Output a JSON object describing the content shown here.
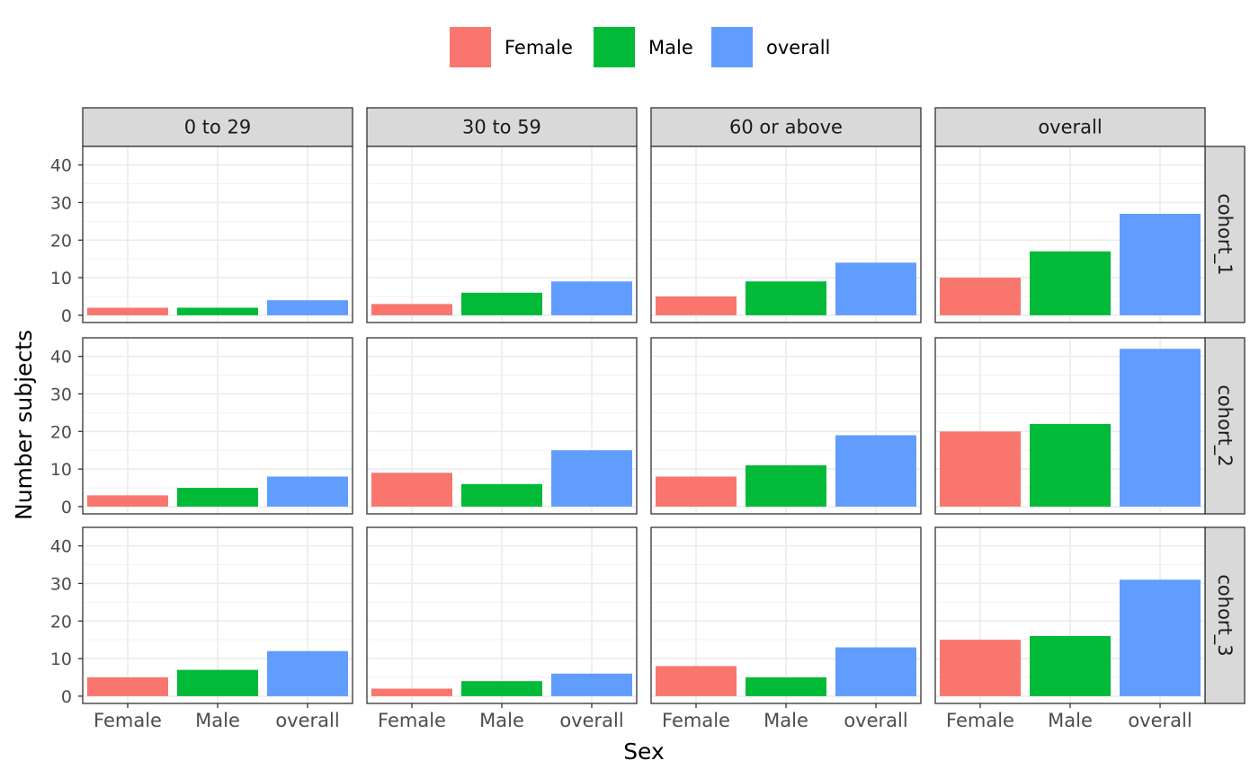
{
  "chart_data": {
    "type": "bar",
    "xlabel": "Sex",
    "ylabel": "Number subjects",
    "ylim": [
      0,
      43
    ],
    "yticks": [
      0,
      10,
      20,
      30,
      40
    ],
    "grid": true,
    "legend_placement": "top",
    "categories": [
      "Female",
      "Male",
      "overall"
    ],
    "colors": {
      "Female": "#F8766D",
      "Male": "#00BA38",
      "overall": "#619CFF"
    },
    "legend": [
      {
        "label": "Female",
        "color": "#F8766D"
      },
      {
        "label": "Male",
        "color": "#00BA38"
      },
      {
        "label": "overall",
        "color": "#619CFF"
      }
    ],
    "facet_columns": [
      "0 to 29",
      "30 to 59",
      "60 or above",
      "overall"
    ],
    "facet_rows": [
      "cohort_1",
      "cohort_2",
      "cohort_3"
    ],
    "panels": [
      {
        "row": "cohort_1",
        "column": "0 to 29",
        "values": [
          2,
          2,
          4
        ]
      },
      {
        "row": "cohort_1",
        "column": "30 to 59",
        "values": [
          3,
          6,
          9
        ]
      },
      {
        "row": "cohort_1",
        "column": "60 or above",
        "values": [
          5,
          9,
          14
        ]
      },
      {
        "row": "cohort_1",
        "column": "overall",
        "values": [
          10,
          17,
          27
        ]
      },
      {
        "row": "cohort_2",
        "column": "0 to 29",
        "values": [
          3,
          5,
          8
        ]
      },
      {
        "row": "cohort_2",
        "column": "30 to 59",
        "values": [
          9,
          6,
          15
        ]
      },
      {
        "row": "cohort_2",
        "column": "60 or above",
        "values": [
          8,
          11,
          19
        ]
      },
      {
        "row": "cohort_2",
        "column": "overall",
        "values": [
          20,
          22,
          42
        ]
      },
      {
        "row": "cohort_3",
        "column": "0 to 29",
        "values": [
          5,
          7,
          12
        ]
      },
      {
        "row": "cohort_3",
        "column": "30 to 59",
        "values": [
          2,
          4,
          6
        ]
      },
      {
        "row": "cohort_3",
        "column": "60 or above",
        "values": [
          8,
          5,
          13
        ]
      },
      {
        "row": "cohort_3",
        "column": "overall",
        "values": [
          15,
          16,
          31
        ]
      }
    ]
  }
}
